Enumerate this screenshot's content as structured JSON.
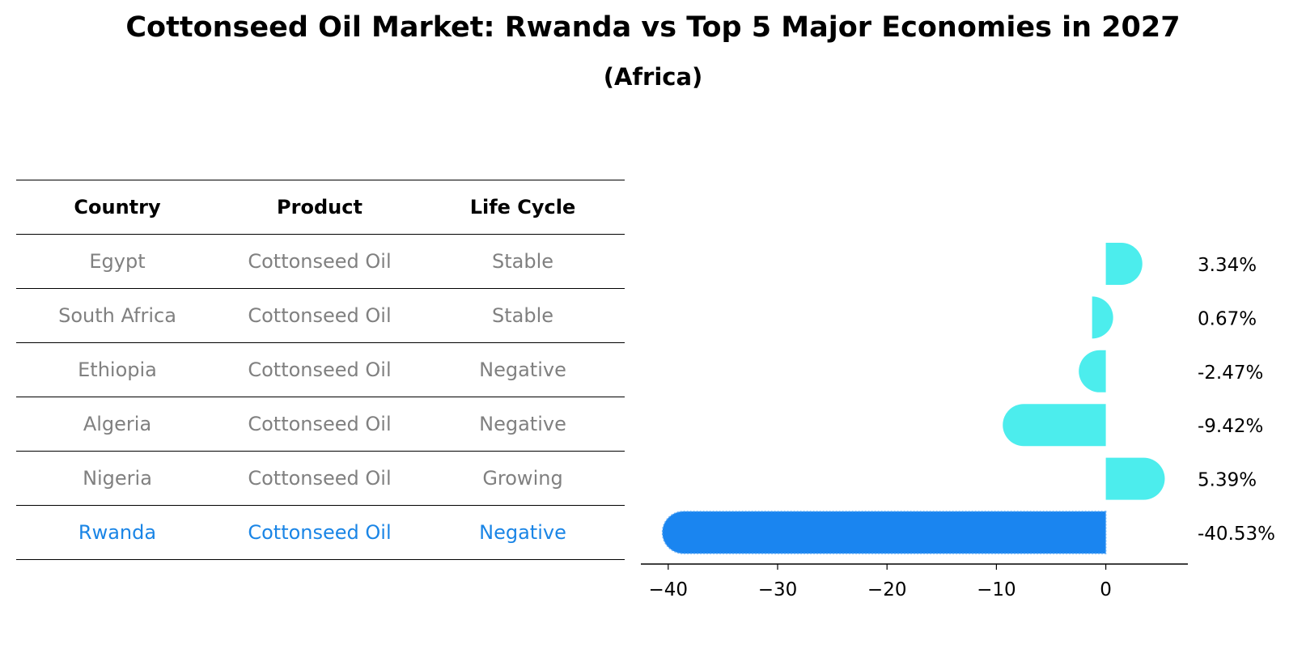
{
  "title": "Cottonseed Oil Market: Rwanda vs Top 5 Major Economies in 2027",
  "subtitle": "(Africa)",
  "table": {
    "headers": [
      "Country",
      "Product",
      "Life Cycle"
    ],
    "rows": [
      {
        "country": "Egypt",
        "product": "Cottonseed Oil",
        "life_cycle": "Stable",
        "highlight": false
      },
      {
        "country": "South Africa",
        "product": "Cottonseed Oil",
        "life_cycle": "Stable",
        "highlight": false
      },
      {
        "country": "Ethiopia",
        "product": "Cottonseed Oil",
        "life_cycle": "Negative",
        "highlight": false
      },
      {
        "country": "Algeria",
        "product": "Cottonseed Oil",
        "life_cycle": "Negative",
        "highlight": false
      },
      {
        "country": "Nigeria",
        "product": "Cottonseed Oil",
        "life_cycle": "Growing",
        "highlight": false
      },
      {
        "country": "Rwanda",
        "product": "Cottonseed Oil",
        "life_cycle": "Negative",
        "highlight": true
      }
    ]
  },
  "colors": {
    "bar": "#4ceded",
    "highlight": "#1a85f0",
    "table_text": "#808080",
    "table_highlight": "#1a85e6"
  },
  "chart_data": {
    "type": "bar",
    "orientation": "horizontal",
    "categories": [
      "Egypt",
      "South Africa",
      "Ethiopia",
      "Algeria",
      "Nigeria",
      "Rwanda"
    ],
    "values": [
      3.34,
      0.67,
      -2.47,
      -9.42,
      5.39,
      -40.53
    ],
    "labels": [
      "3.34%",
      "0.67%",
      "-2.47%",
      "-9.42%",
      "5.39%",
      "-40.53%"
    ],
    "xlim": [
      -42.5,
      7.5
    ],
    "xticks": [
      -40,
      -30,
      -20,
      -10,
      0
    ],
    "xtick_labels": [
      "−40",
      "−30",
      "−20",
      "−10",
      "0"
    ],
    "highlight_index": 5,
    "grid": false
  }
}
